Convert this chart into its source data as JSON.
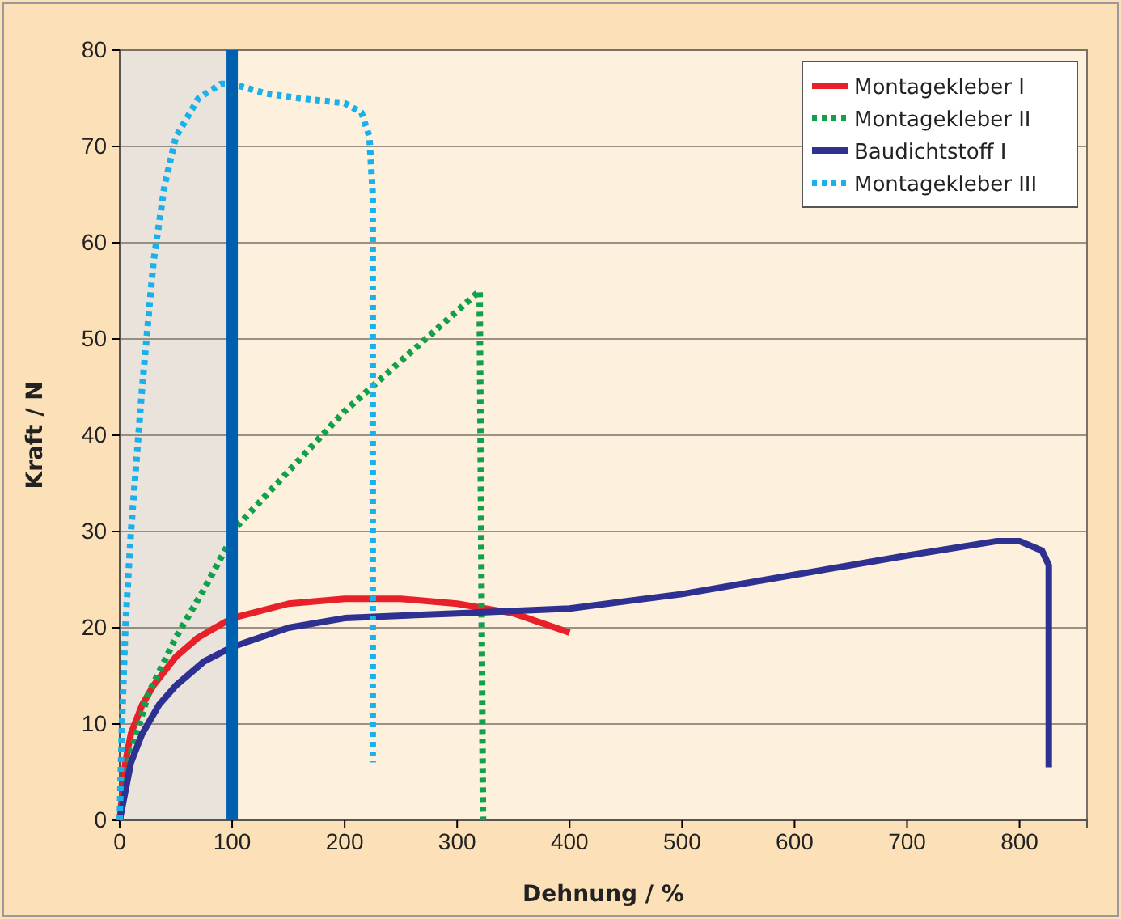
{
  "chart_data": {
    "type": "line",
    "xlabel": "Dehnung / %",
    "ylabel": "Kraft / N",
    "xlim": [
      0,
      860
    ],
    "xticks": [
      0,
      100,
      200,
      300,
      400,
      500,
      600,
      700,
      800
    ],
    "ylim": [
      0,
      80
    ],
    "yticks": [
      0,
      10,
      20,
      30,
      40,
      50,
      60,
      70,
      80
    ],
    "grid": "y",
    "legend": "top right",
    "bands": [
      {
        "axis": "x",
        "from": 0,
        "to": 100,
        "color": "#e9e3dc"
      }
    ],
    "ref_lines": [
      {
        "axis": "x",
        "value": 100,
        "color": "#0060b0"
      }
    ],
    "series": [
      {
        "name": "Montagekleber I",
        "color": "#e8202a",
        "line_style": "solid",
        "x": [
          0,
          5,
          10,
          20,
          30,
          50,
          70,
          100,
          150,
          200,
          250,
          300,
          350,
          400
        ],
        "values": [
          0,
          6,
          9,
          12,
          14,
          17,
          19,
          21,
          22.5,
          23,
          23,
          22.5,
          21.5,
          19.5
        ]
      },
      {
        "name": "Montagekleber II",
        "color": "#12a04a",
        "line_style": "dotted",
        "x": [
          0,
          10,
          25,
          50,
          75,
          98,
          100,
          200,
          320,
          323
        ],
        "values": [
          0,
          7,
          13,
          19,
          24,
          29,
          30,
          42.5,
          55,
          0
        ]
      },
      {
        "name": "Baudichtstoff I",
        "color": "#2e3192",
        "line_style": "solid",
        "x": [
          0,
          5,
          10,
          20,
          35,
          50,
          75,
          100,
          150,
          200,
          300,
          400,
          500,
          600,
          700,
          780,
          800,
          820,
          826,
          826
        ],
        "values": [
          0,
          3,
          6,
          9,
          12,
          14,
          16.5,
          18,
          20,
          21,
          21.5,
          22,
          23.5,
          25.5,
          27.5,
          29,
          29,
          28,
          26.5,
          5.5
        ]
      },
      {
        "name": "Montagekleber III",
        "color": "#1ab0ea",
        "line_style": "dotted",
        "x": [
          0,
          2,
          5,
          10,
          20,
          30,
          40,
          50,
          70,
          90,
          100,
          130,
          160,
          200,
          215,
          222,
          225,
          225
        ],
        "values": [
          0,
          10,
          20,
          30,
          45,
          58,
          66,
          71,
          75,
          76.5,
          76.5,
          75.5,
          75,
          74.5,
          73.5,
          71,
          65,
          6
        ]
      }
    ]
  }
}
